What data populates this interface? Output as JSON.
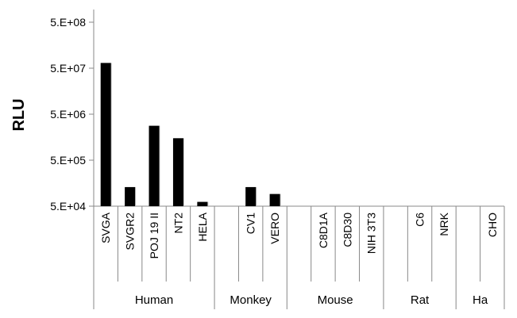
{
  "chart_data": {
    "type": "bar",
    "scale": "log",
    "ylabel": "RLU",
    "xlabel": "",
    "title": "",
    "ylim": [
      50000,
      500000000
    ],
    "yticks": [
      "5.E+04",
      "5.E+05",
      "5.E+06",
      "5.E+07",
      "5.E+08"
    ],
    "bar_color": "#000000",
    "categories": [
      {
        "label": "SVGA",
        "value": 65000000
      },
      {
        "label": "SVGR2",
        "value": 130000
      },
      {
        "label": "POJ 19 II",
        "value": 2800000
      },
      {
        "label": "NT2",
        "value": 1500000
      },
      {
        "label": "HELA",
        "value": 62000
      },
      {
        "label": "",
        "value": null
      },
      {
        "label": "CV1",
        "value": 130000
      },
      {
        "label": "VERO",
        "value": 92000
      },
      {
        "label": "",
        "value": null
      },
      {
        "label": "C8D1A",
        "value": null
      },
      {
        "label": "C8D30",
        "value": null
      },
      {
        "label": "NIH 3T3",
        "value": null
      },
      {
        "label": "",
        "value": null
      },
      {
        "label": "C6",
        "value": null
      },
      {
        "label": "NRK",
        "value": null
      },
      {
        "label": "",
        "value": null
      },
      {
        "label": "CHO",
        "value": null
      }
    ],
    "groups": [
      {
        "label": "Human",
        "start": 0,
        "end": 4
      },
      {
        "label": "Monkey",
        "start": 5,
        "end": 7
      },
      {
        "label": "Mouse",
        "start": 8,
        "end": 11
      },
      {
        "label": "Rat",
        "start": 12,
        "end": 14
      },
      {
        "label": "Ha",
        "start": 15,
        "end": 16
      }
    ]
  }
}
